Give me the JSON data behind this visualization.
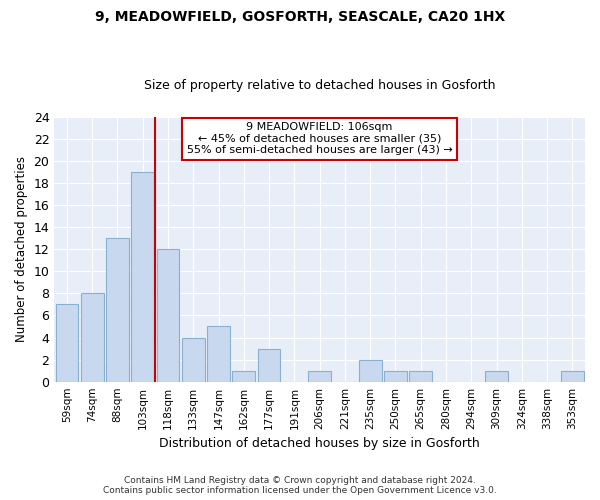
{
  "title_line1": "9, MEADOWFIELD, GOSFORTH, SEASCALE, CA20 1HX",
  "title_line2": "Size of property relative to detached houses in Gosforth",
  "xlabel": "Distribution of detached houses by size in Gosforth",
  "ylabel": "Number of detached properties",
  "categories": [
    "59sqm",
    "74sqm",
    "88sqm",
    "103sqm",
    "118sqm",
    "133sqm",
    "147sqm",
    "162sqm",
    "177sqm",
    "191sqm",
    "206sqm",
    "221sqm",
    "235sqm",
    "250sqm",
    "265sqm",
    "280sqm",
    "294sqm",
    "309sqm",
    "324sqm",
    "338sqm",
    "353sqm"
  ],
  "values": [
    7,
    8,
    13,
    19,
    12,
    4,
    5,
    1,
    3,
    0,
    1,
    0,
    2,
    1,
    1,
    0,
    0,
    1,
    0,
    0,
    1
  ],
  "bar_color": "#c8d8ee",
  "bar_edge_color": "#8ab0d0",
  "vline_x": 3.5,
  "vline_color": "#cc0000",
  "ylim": [
    0,
    24
  ],
  "yticks": [
    0,
    2,
    4,
    6,
    8,
    10,
    12,
    14,
    16,
    18,
    20,
    22,
    24
  ],
  "annotation_text": "9 MEADOWFIELD: 106sqm\n← 45% of detached houses are smaller (35)\n55% of semi-detached houses are larger (43) →",
  "annotation_box_color": "#ffffff",
  "annotation_box_edge_color": "#cc0000",
  "footer_line1": "Contains HM Land Registry data © Crown copyright and database right 2024.",
  "footer_line2": "Contains public sector information licensed under the Open Government Licence v3.0.",
  "background_color": "#ffffff",
  "plot_background_color": "#e8eef8"
}
